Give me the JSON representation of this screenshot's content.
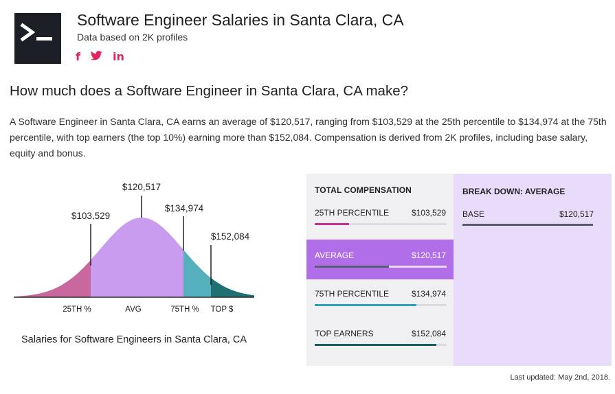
{
  "header": {
    "title": "Software Engineer Salaries in Santa Clara, CA",
    "subtitle": "Data based on 2K profiles",
    "social": [
      {
        "icon": "facebook-icon",
        "glyph": "f"
      },
      {
        "icon": "twitter-icon",
        "glyph": "🐦"
      },
      {
        "icon": "linkedin-icon",
        "glyph": "in"
      }
    ]
  },
  "question": "How much does a Software Engineer in Santa Clara, CA make?",
  "description": "A Software Engineer in Santa Clara, CA earns an average of $120,517, ranging from $103,529 at the 25th percentile to $134,974 at the 75th percentile, with top earners (the top 10%) earning more than $152,084. Compensation is derived from 2K profiles, including base salary, equity and bonus.",
  "curve": {
    "caption": "Salaries for Software Engineers in Santa Clara, CA",
    "markers": [
      {
        "value": "$103,529",
        "label": "25TH %"
      },
      {
        "value": "$120,517",
        "label": "AVG"
      },
      {
        "value": "$134,974",
        "label": "75TH %"
      },
      {
        "value": "$152,084",
        "label": "TOP $"
      }
    ],
    "colors": {
      "p25": "#c8689f",
      "avg": "#c99cf0",
      "p75": "#55b0be",
      "top": "#1d6f72"
    }
  },
  "compensation": {
    "heading": "TOTAL COMPENSATION",
    "rows": [
      {
        "label": "25TH PERCENTILE",
        "value": "$103,529",
        "fill": 0.26,
        "color": "#c8308f",
        "active": false
      },
      {
        "label": "AVERAGE",
        "value": "$120,517",
        "fill": 0.56,
        "color": "#5a5d72",
        "active": true
      },
      {
        "label": "75TH PERCENTILE",
        "value": "$134,974",
        "fill": 0.77,
        "color": "#2aa3b3",
        "active": false
      },
      {
        "label": "TOP EARNERS",
        "value": "$152,084",
        "fill": 0.92,
        "color": "#155e63",
        "active": false
      }
    ]
  },
  "breakdown": {
    "heading": "BREAK DOWN: AVERAGE",
    "label": "BASE",
    "value": "$120,517"
  },
  "footer": {
    "updated": "Last updated: May 2nd, 2018."
  }
}
